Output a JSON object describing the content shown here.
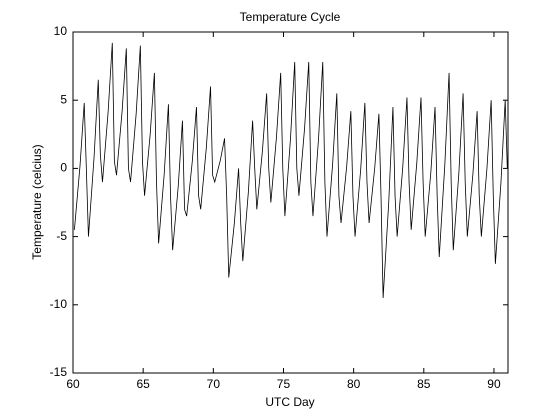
{
  "chart_data": {
    "type": "line",
    "title": "Temperature Cycle",
    "x_label": "UTC Day",
    "y_label": "Temperature (celcius)",
    "xlim": [
      60,
      91
    ],
    "ylim": [
      -15,
      10
    ],
    "xticks": [
      60,
      65,
      70,
      75,
      80,
      85,
      90
    ],
    "yticks": [
      -15,
      -10,
      -5,
      0,
      5,
      10
    ],
    "color": "#000000",
    "x": [
      60.1,
      60.5,
      60.8,
      60.95,
      61.1,
      61.5,
      61.8,
      61.95,
      62.1,
      62.5,
      62.8,
      62.95,
      63.1,
      63.5,
      63.8,
      63.95,
      64.1,
      64.5,
      64.8,
      64.95,
      65.1,
      65.5,
      65.8,
      65.95,
      66.1,
      66.5,
      66.8,
      66.95,
      67.1,
      67.5,
      67.8,
      67.95,
      68.1,
      68.5,
      68.8,
      68.95,
      69.1,
      69.5,
      69.8,
      69.95,
      70.1,
      70.5,
      70.8,
      70.95,
      71.1,
      71.5,
      71.8,
      71.95,
      72.1,
      72.5,
      72.8,
      72.95,
      73.1,
      73.5,
      73.8,
      73.95,
      74.1,
      74.5,
      74.8,
      74.95,
      75.1,
      75.5,
      75.8,
      75.95,
      76.1,
      76.5,
      76.8,
      76.95,
      77.1,
      77.5,
      77.8,
      77.95,
      78.1,
      78.5,
      78.8,
      78.95,
      79.1,
      79.5,
      79.8,
      79.95,
      80.1,
      80.5,
      80.8,
      80.95,
      81.1,
      81.5,
      81.8,
      81.95,
      82.1,
      82.5,
      82.8,
      82.95,
      83.1,
      83.5,
      83.8,
      83.95,
      84.1,
      84.5,
      84.8,
      84.95,
      85.1,
      85.5,
      85.8,
      85.95,
      86.1,
      86.5,
      86.8,
      86.95,
      87.1,
      87.5,
      87.8,
      87.95,
      88.1,
      88.5,
      88.8,
      88.95,
      89.1,
      89.5,
      89.8,
      89.95,
      90.1,
      90.5,
      90.8,
      90.95
    ],
    "values": [
      -4.5,
      0.2,
      4.8,
      0,
      -5,
      0.8,
      6.5,
      1,
      -1,
      4.1,
      9.2,
      0.5,
      -0.5,
      4.2,
      8.8,
      0,
      -1,
      4,
      9,
      0.5,
      -2,
      2.5,
      7,
      -1,
      -5.5,
      -0.4,
      4.7,
      -2,
      -6,
      -1.3,
      3.5,
      -3,
      -3.5,
      0.5,
      4.5,
      -2,
      -3,
      1.5,
      6,
      -0.5,
      -1,
      0.6,
      2.2,
      -2,
      -8,
      -4,
      0,
      -4,
      -6.8,
      -1.7,
      3.5,
      0,
      -3,
      1.3,
      5.5,
      0,
      -2.5,
      2.3,
      7,
      0,
      -3.5,
      2.2,
      7.8,
      0,
      -2,
      2.9,
      7.8,
      -1,
      -3.5,
      2.2,
      7.8,
      -1,
      -5,
      0.3,
      5.5,
      -2,
      -4,
      0.1,
      4.2,
      -2,
      -5,
      -0.1,
      4.8,
      -1,
      -4,
      0,
      4,
      -2,
      -9.5,
      -2.5,
      4.5,
      -2,
      -5,
      0.1,
      5.2,
      -1,
      -4.5,
      0.4,
      5.2,
      -1,
      -5,
      -0.3,
      4.5,
      -2,
      -6.5,
      0.3,
      7,
      -1,
      -6,
      -0.3,
      5.5,
      -1,
      -5,
      -0.4,
      4.2,
      -2,
      -5,
      0,
      5,
      -2,
      -7,
      -1,
      5,
      0
    ]
  }
}
